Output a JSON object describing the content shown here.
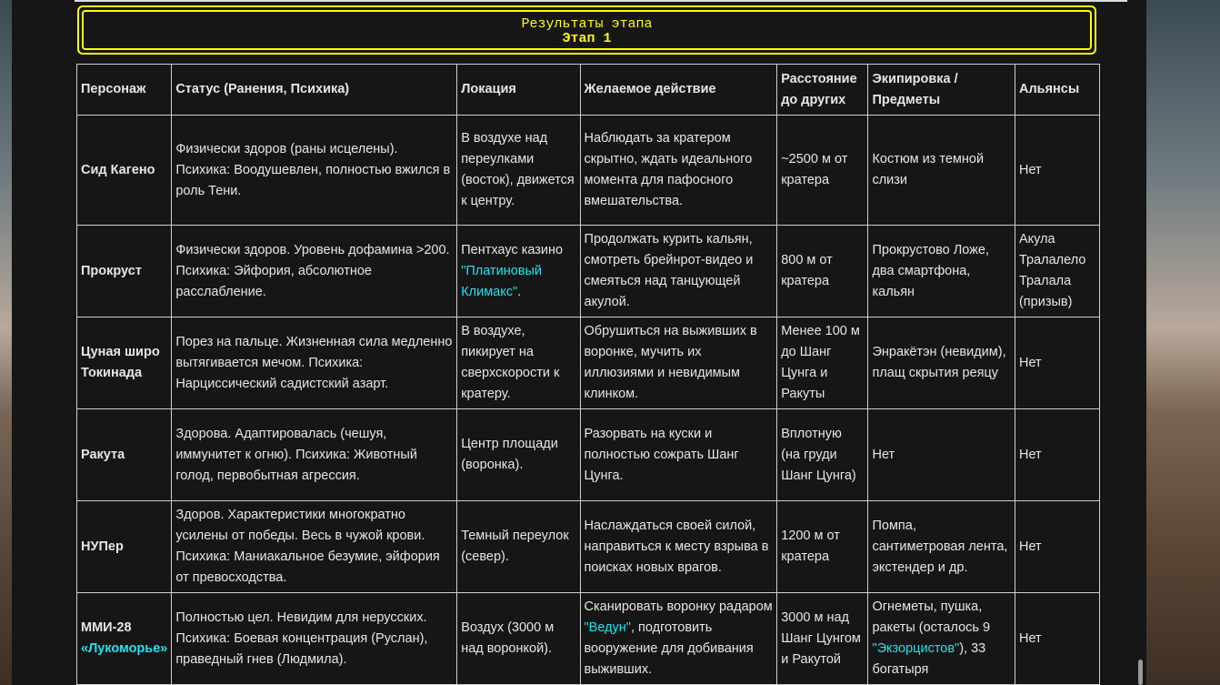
{
  "banner": {
    "title": "Результаты этапа",
    "subtitle": "Этап 1"
  },
  "headers": [
    "Персонаж",
    "Статус (Ранения, Психика)",
    "Локация",
    "Желаемое действие",
    "Расстояние до других",
    "Экипировка / Предметы",
    "Альянсы"
  ],
  "rows": [
    {
      "name": [
        {
          "t": "Сид Кагено"
        }
      ],
      "status": [
        {
          "t": "Физически здоров (раны исцелены). Психика: Воодушевлен, полностью вжился в роль Тени."
        }
      ],
      "location": [
        {
          "t": "В воздухе над переулками (восток), движется к центру."
        }
      ],
      "action": [
        {
          "t": "Наблюдать за кратером скрытно, ждать идеального момента для пафосного вмешательства."
        }
      ],
      "distance": [
        {
          "t": "~2500 м от кратера"
        }
      ],
      "equipment": [
        {
          "t": "Костюм из темной слизи"
        }
      ],
      "alliances": [
        {
          "t": "Нет"
        }
      ]
    },
    {
      "name": [
        {
          "t": "Прокруст"
        }
      ],
      "status": [
        {
          "t": "Физически здоров. Уровень дофамина >200. Психика: Эйфория, абсолютное расслабление."
        }
      ],
      "location": [
        {
          "t": "Пентхаус казино "
        },
        {
          "t": "\"Платиновый Климакс\"",
          "hl": true
        },
        {
          "t": "."
        }
      ],
      "action": [
        {
          "t": "Продолжать курить кальян, смотреть брейнрот-видео и смеяться над танцующей акулой."
        }
      ],
      "distance": [
        {
          "t": "800 м от кратера"
        }
      ],
      "equipment": [
        {
          "t": "Прокрустово Ложе, два смартфона, кальян"
        }
      ],
      "alliances": [
        {
          "t": "Акула Тралалело Тралала (призыв)"
        }
      ]
    },
    {
      "name": [
        {
          "t": "Цуная широ Токинада"
        }
      ],
      "status": [
        {
          "t": "Порез на пальце. Жизненная сила медленно вытягивается мечом. Психика: Нарциссический садистский азарт."
        }
      ],
      "location": [
        {
          "t": "В воздухе, пикирует на сверхскорости к кратеру."
        }
      ],
      "action": [
        {
          "t": "Обрушиться на выживших в воронке, мучить их иллюзиями и невидимым клинком."
        }
      ],
      "distance": [
        {
          "t": "Менее 100 м до Шанг Цунга и Ракуты"
        }
      ],
      "equipment": [
        {
          "t": "Энракётэн (невидим), плащ скрытия реяцу"
        }
      ],
      "alliances": [
        {
          "t": "Нет"
        }
      ]
    },
    {
      "name": [
        {
          "t": "Ракута"
        }
      ],
      "status": [
        {
          "t": "Здорова. Адаптировалась (чешуя, иммунитет к огню). Психика: Животный голод, первобытная агрессия."
        }
      ],
      "location": [
        {
          "t": "Центр площади (воронка)."
        }
      ],
      "action": [
        {
          "t": "Разорвать на куски и полностью сожрать Шанг Цунга."
        }
      ],
      "distance": [
        {
          "t": "Вплотную (на груди Шанг Цунга)"
        }
      ],
      "equipment": [
        {
          "t": "Нет"
        }
      ],
      "alliances": [
        {
          "t": "Нет"
        }
      ]
    },
    {
      "name": [
        {
          "t": "НУПер"
        }
      ],
      "status": [
        {
          "t": "Здоров. Характеристики многократно усилены от победы. Весь в чужой крови. Психика: Маниакальное безумие, эйфория от превосходства."
        }
      ],
      "location": [
        {
          "t": "Темный переулок (север)."
        }
      ],
      "action": [
        {
          "t": "Наслаждаться своей силой, направиться к месту взрыва в поисках новых врагов."
        }
      ],
      "distance": [
        {
          "t": "1200 м от кратера"
        }
      ],
      "equipment": [
        {
          "t": "Помпа, сантиметровая лента, экстендер и др."
        }
      ],
      "alliances": [
        {
          "t": "Нет"
        }
      ]
    },
    {
      "name": [
        {
          "t": "ММИ-28 "
        },
        {
          "t": "«Лукоморье»",
          "hl": true
        }
      ],
      "status": [
        {
          "t": "Полностью цел. Невидим для нерусских. Психика: Боевая концентрация (Руслан), праведный гнев (Людмила)."
        }
      ],
      "location": [
        {
          "t": "Воздух (3000 м над воронкой)."
        }
      ],
      "action": [
        {
          "t": "Сканировать воронку радаром "
        },
        {
          "t": "\"Ведун\"",
          "hl": true
        },
        {
          "t": ", подготовить вооружение для добивания выживших."
        }
      ],
      "distance": [
        {
          "t": "3000 м над Шанг Цунгом и Ракутой"
        }
      ],
      "equipment": [
        {
          "t": "Огнеметы, пушка, ракеты (осталось 9 "
        },
        {
          "t": "\"Экзорцистов\"",
          "hl": true
        },
        {
          "t": "), 33 богатыря"
        }
      ],
      "alliances": [
        {
          "t": "Нет"
        }
      ]
    }
  ],
  "colors": {
    "highlight": "#1fe3f0",
    "banner": "#ffff00",
    "panel": "#161616"
  }
}
